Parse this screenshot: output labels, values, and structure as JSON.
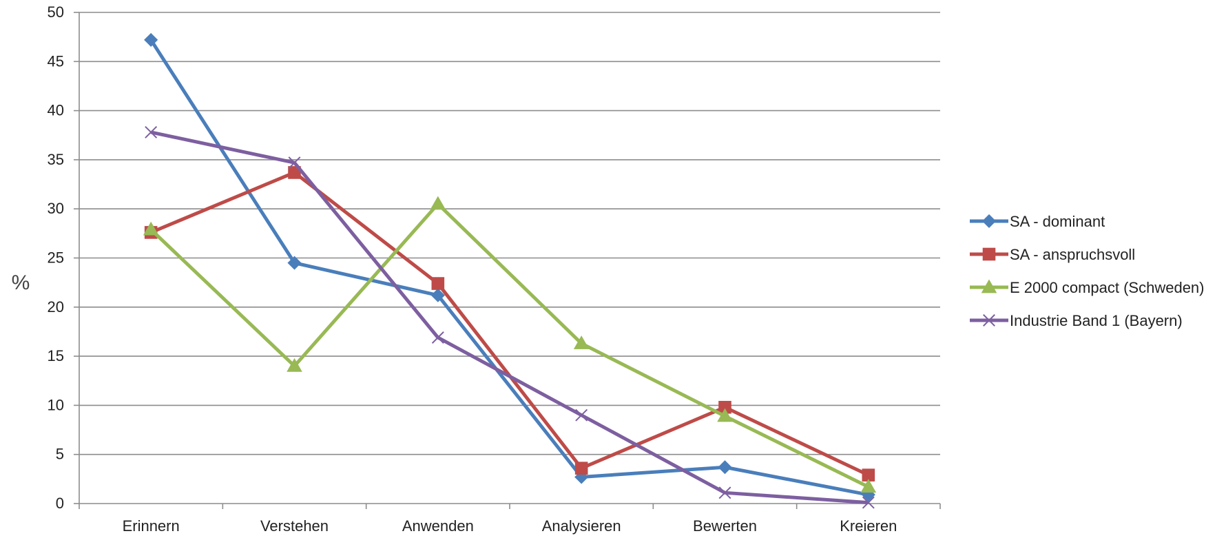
{
  "chart_data": {
    "type": "line",
    "title": "",
    "xlabel": "",
    "ylabel": "%",
    "ylim": [
      0,
      50
    ],
    "ytick_step": 5,
    "grid": "horizontal",
    "legend_position": "right",
    "categories": [
      "Erinnern",
      "Verstehen",
      "Anwenden",
      "Analysieren",
      "Bewerten",
      "Kreieren"
    ],
    "series": [
      {
        "name": "SA - dominant",
        "color": "#4a7ebb",
        "marker": "diamond",
        "values": [
          47.2,
          24.5,
          21.2,
          2.7,
          3.7,
          0.9
        ]
      },
      {
        "name": "SA - anspruchsvoll",
        "color": "#be4b48",
        "marker": "square",
        "values": [
          27.6,
          33.7,
          22.4,
          3.6,
          9.8,
          2.9
        ]
      },
      {
        "name": "E 2000 compact (Schweden)",
        "color": "#98b954",
        "marker": "triangle",
        "values": [
          27.9,
          14.0,
          30.5,
          16.3,
          8.9,
          1.7
        ]
      },
      {
        "name": "Industrie Band 1 (Bayern)",
        "color": "#7d5fa0",
        "marker": "x",
        "values": [
          37.8,
          34.7,
          16.9,
          9.0,
          1.1,
          0.1
        ]
      }
    ]
  }
}
